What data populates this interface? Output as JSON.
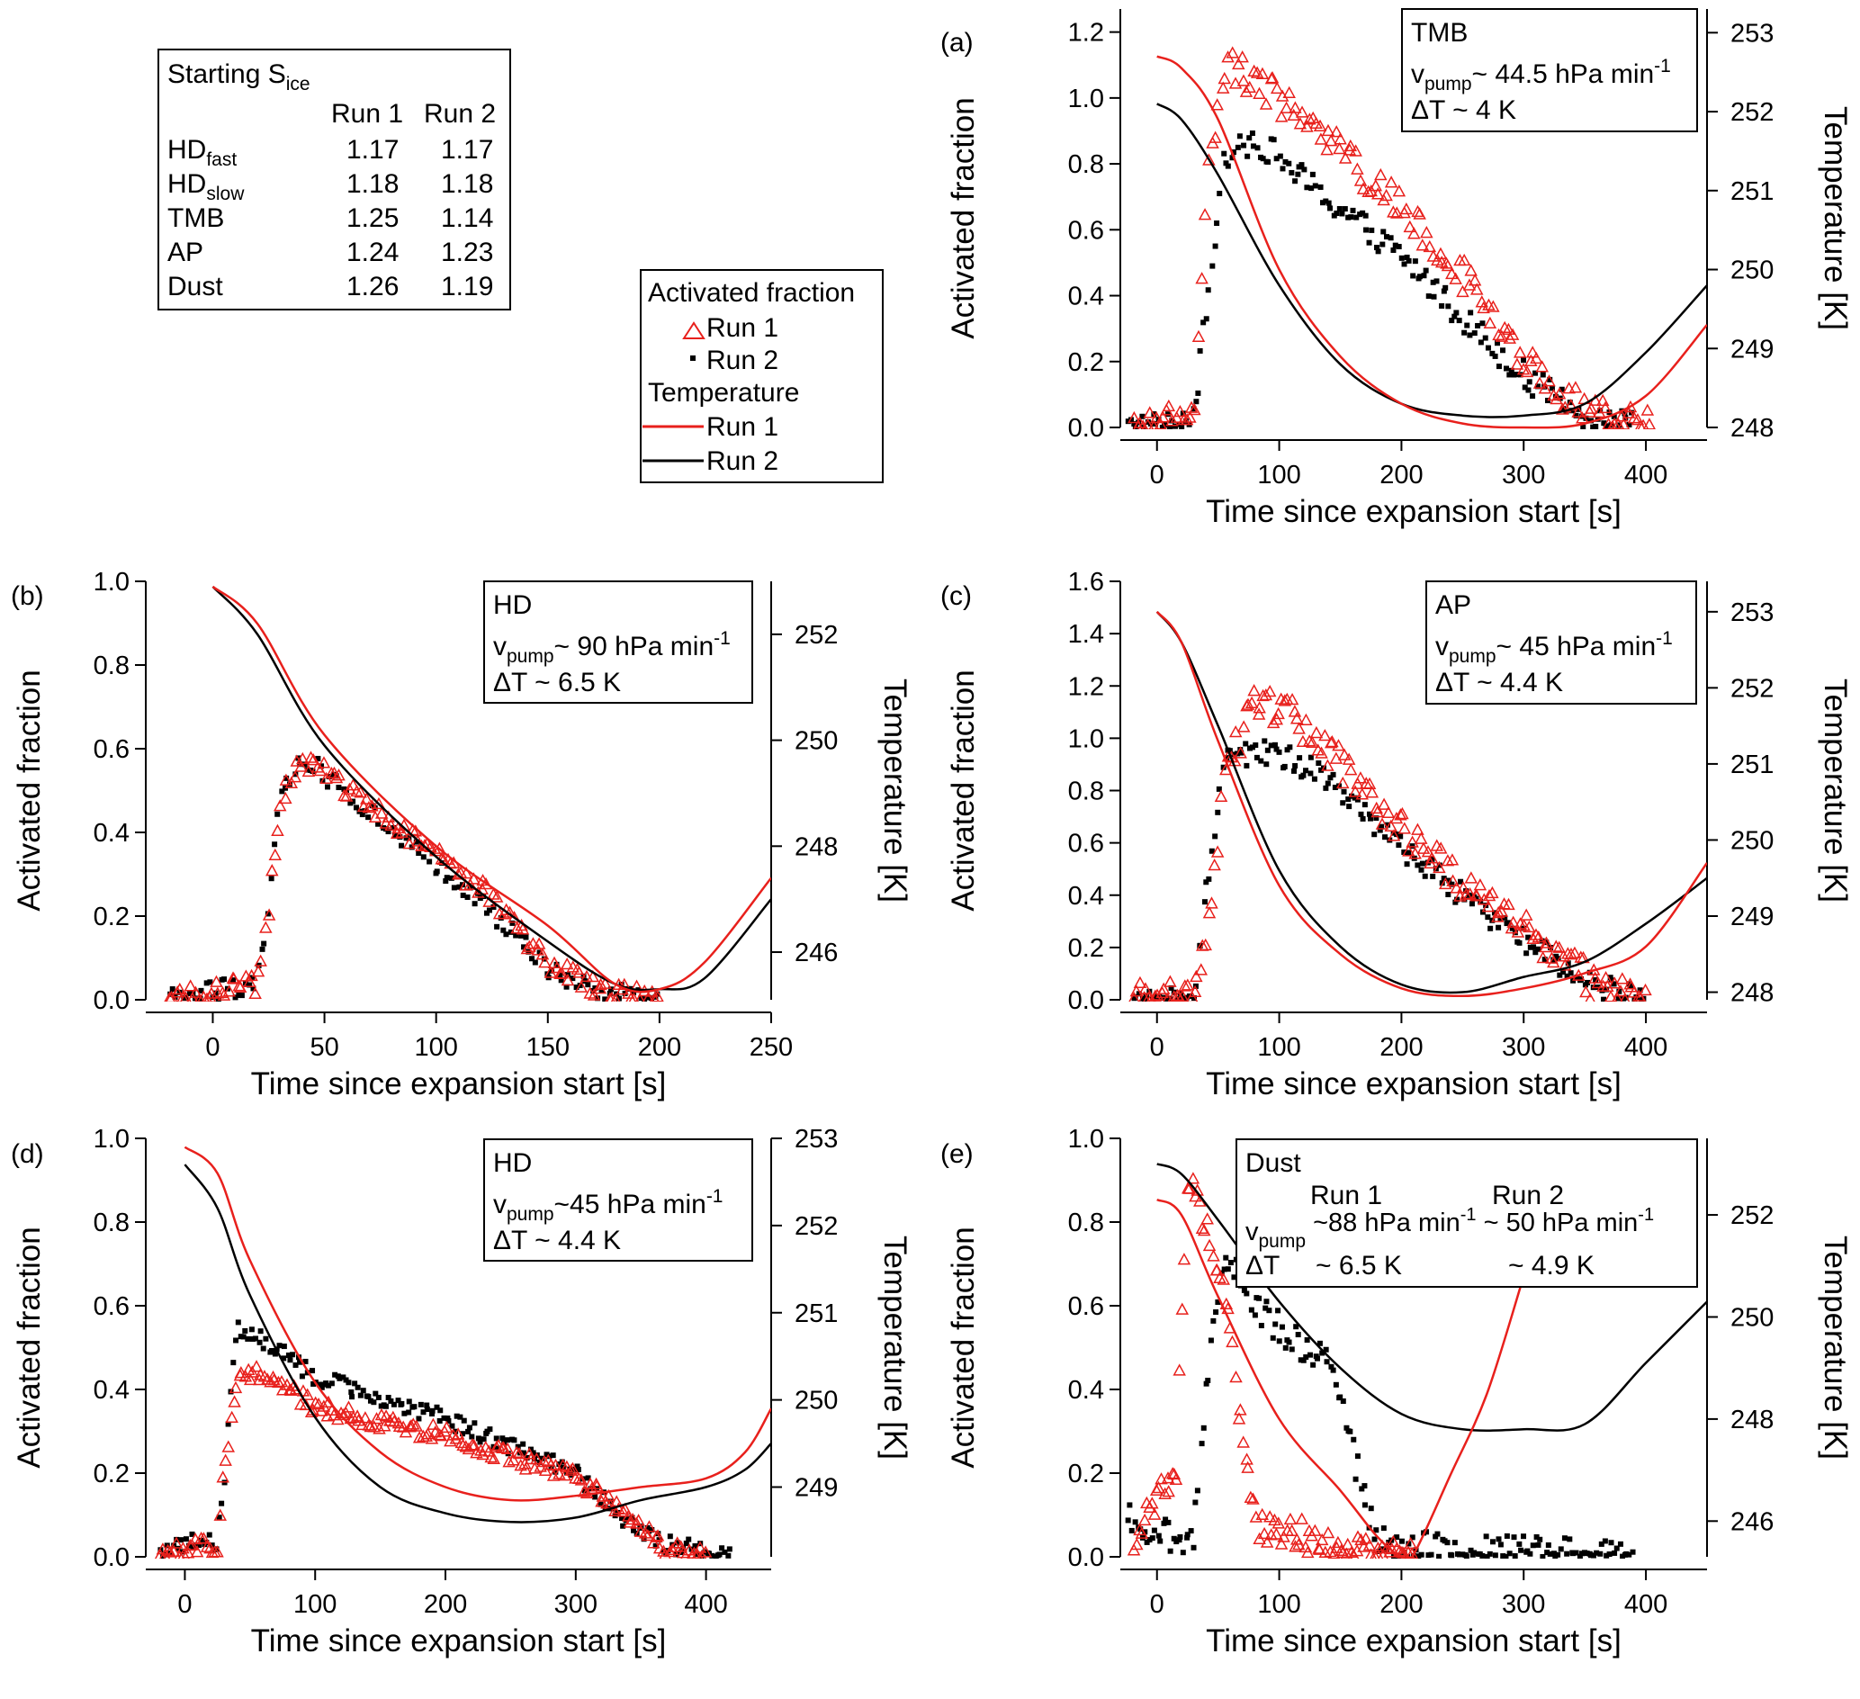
{
  "figure_title": "",
  "colors": {
    "run1": "#e8201c",
    "run2": "#000000",
    "axis": "#000000"
  },
  "sice_table": {
    "title_prefix": "Starting S",
    "title_sub": "ice",
    "col1": "Run 1",
    "col2": "Run 2",
    "rows": [
      {
        "label": "HD",
        "sub": "fast",
        "r1": "1.17",
        "r2": "1.17"
      },
      {
        "label": "HD",
        "sub": "slow",
        "r1": "1.18",
        "r2": "1.18"
      },
      {
        "label": "TMB",
        "sub": "",
        "r1": "1.25",
        "r2": "1.14"
      },
      {
        "label": "AP",
        "sub": "",
        "r1": "1.24",
        "r2": "1.23"
      },
      {
        "label": "Dust",
        "sub": "",
        "r1": "1.26",
        "r2": "1.19"
      }
    ]
  },
  "legend": {
    "af_header": "Activated fraction",
    "af_run1": "Run 1",
    "af_run2": "Run 2",
    "t_header": "Temperature",
    "t_run1": "Run 1",
    "t_run2": "Run 2"
  },
  "chart_data": [
    {
      "id": "a",
      "panel_label": "(a)",
      "type": "scatter",
      "xlabel": "Time since expansion start [s]",
      "ylabel": "Activated fraction",
      "y2label": "Temperature [K]",
      "xlim": [
        -30,
        450
      ],
      "ylim": [
        0,
        1.27
      ],
      "y2lim": [
        248,
        253.3
      ],
      "xticks": [
        0,
        100,
        200,
        300,
        400
      ],
      "yticks": [
        0.0,
        0.2,
        0.4,
        0.6,
        0.8,
        1.0,
        1.2
      ],
      "y2ticks": [
        248,
        249,
        250,
        251,
        252,
        253
      ],
      "info": {
        "line1": "TMB",
        "v_sym": "v",
        "v_sub": "pump",
        "v_text": "~ 44.5 hPa min",
        "v_sup": "-1",
        "line3": "ΔT ~ 4 K"
      },
      "run1_af": {
        "knots": [
          [
            -20,
            0.0
          ],
          [
            0,
            0.01
          ],
          [
            30,
            0.02
          ],
          [
            40,
            0.7
          ],
          [
            55,
            1.1
          ],
          [
            80,
            1.05
          ],
          [
            130,
            0.9
          ],
          [
            200,
            0.68
          ],
          [
            260,
            0.42
          ],
          [
            300,
            0.2
          ],
          [
            340,
            0.08
          ],
          [
            370,
            0.02
          ],
          [
            405,
            0.0
          ]
        ],
        "n": 160,
        "noise": 0.055
      },
      "run2_af": {
        "knots": [
          [
            -25,
            0.05
          ],
          [
            -10,
            0.0
          ],
          [
            30,
            0.01
          ],
          [
            40,
            0.35
          ],
          [
            55,
            0.8
          ],
          [
            80,
            0.88
          ],
          [
            130,
            0.72
          ],
          [
            200,
            0.52
          ],
          [
            260,
            0.3
          ],
          [
            300,
            0.16
          ],
          [
            340,
            0.05
          ],
          [
            390,
            0.0
          ]
        ],
        "n": 180,
        "noise": 0.045
      },
      "run1_temp": [
        [
          0,
          252.7
        ],
        [
          20,
          252.55
        ],
        [
          50,
          251.9
        ],
        [
          100,
          250.0
        ],
        [
          150,
          248.9
        ],
        [
          200,
          248.3
        ],
        [
          250,
          248.05
        ],
        [
          300,
          248.0
        ],
        [
          350,
          248.05
        ],
        [
          400,
          248.4
        ],
        [
          450,
          249.3
        ]
      ],
      "run2_temp": [
        [
          0,
          252.1
        ],
        [
          20,
          251.9
        ],
        [
          50,
          251.2
        ],
        [
          100,
          249.8
        ],
        [
          150,
          248.8
        ],
        [
          200,
          248.3
        ],
        [
          250,
          248.15
        ],
        [
          300,
          248.15
        ],
        [
          350,
          248.3
        ],
        [
          400,
          248.95
        ],
        [
          450,
          249.8
        ]
      ]
    },
    {
      "id": "b",
      "panel_label": "(b)",
      "type": "scatter",
      "xlabel": "Time since expansion start [s]",
      "ylabel": "Activated fraction",
      "y2label": "Temperature [K]",
      "xlim": [
        -30,
        250
      ],
      "ylim": [
        0,
        1.0
      ],
      "y2lim": [
        245.1,
        253.0
      ],
      "xticks": [
        0,
        50,
        100,
        150,
        200,
        250
      ],
      "yticks": [
        0.0,
        0.2,
        0.4,
        0.6,
        0.8,
        1.0
      ],
      "y2ticks": [
        246,
        248,
        250,
        252
      ],
      "info": {
        "line1": "HD",
        "v_sym": "v",
        "v_sub": "pump",
        "v_text": "~ 90 hPa min",
        "v_sup": "-1",
        "line3": "ΔT ~ 6.5 K"
      },
      "run1_af": {
        "knots": [
          [
            -20,
            0.0
          ],
          [
            0,
            0.02
          ],
          [
            20,
            0.04
          ],
          [
            25,
            0.2
          ],
          [
            30,
            0.48
          ],
          [
            40,
            0.57
          ],
          [
            50,
            0.55
          ],
          [
            80,
            0.42
          ],
          [
            120,
            0.27
          ],
          [
            150,
            0.09
          ],
          [
            175,
            0.02
          ],
          [
            200,
            0.0
          ]
        ],
        "n": 150,
        "noise": 0.025
      },
      "run2_af": {
        "knots": [
          [
            -20,
            0.0
          ],
          [
            0,
            0.02
          ],
          [
            20,
            0.04
          ],
          [
            25,
            0.2
          ],
          [
            30,
            0.5
          ],
          [
            40,
            0.58
          ],
          [
            50,
            0.54
          ],
          [
            80,
            0.4
          ],
          [
            120,
            0.24
          ],
          [
            150,
            0.07
          ],
          [
            175,
            0.02
          ],
          [
            200,
            0.0
          ]
        ],
        "n": 150,
        "noise": 0.025
      },
      "run1_temp": [
        [
          0,
          252.9
        ],
        [
          20,
          252.2
        ],
        [
          50,
          250.1
        ],
        [
          100,
          248.0
        ],
        [
          150,
          246.5
        ],
        [
          180,
          245.4
        ],
        [
          200,
          245.3
        ],
        [
          220,
          245.8
        ],
        [
          250,
          247.4
        ]
      ],
      "run2_temp": [
        [
          0,
          252.9
        ],
        [
          20,
          252.0
        ],
        [
          50,
          249.9
        ],
        [
          100,
          247.8
        ],
        [
          150,
          246.2
        ],
        [
          180,
          245.4
        ],
        [
          200,
          245.3
        ],
        [
          220,
          245.5
        ],
        [
          250,
          247.0
        ]
      ]
    },
    {
      "id": "c",
      "panel_label": "(c)",
      "type": "scatter",
      "xlabel": "Time since expansion start [s]",
      "ylabel": "Activated fraction",
      "y2label": "Temperature [K]",
      "xlim": [
        -30,
        450
      ],
      "ylim": [
        0,
        1.6
      ],
      "y2lim": [
        247.9,
        253.4
      ],
      "xticks": [
        0,
        100,
        200,
        300,
        400
      ],
      "yticks": [
        0.0,
        0.2,
        0.4,
        0.6,
        0.8,
        1.0,
        1.2,
        1.4,
        1.6
      ],
      "y2ticks": [
        248,
        249,
        250,
        251,
        252,
        253
      ],
      "info": {
        "line1": "AP",
        "v_sym": "v",
        "v_sub": "pump",
        "v_text": "~ 45 hPa min",
        "v_sup": "-1",
        "line3": "ΔT ~ 4.4 K"
      },
      "run1_af": {
        "knots": [
          [
            -20,
            0.0
          ],
          [
            30,
            0.01
          ],
          [
            40,
            0.2
          ],
          [
            55,
            0.85
          ],
          [
            80,
            1.15
          ],
          [
            110,
            1.1
          ],
          [
            140,
            0.95
          ],
          [
            200,
            0.65
          ],
          [
            260,
            0.4
          ],
          [
            320,
            0.2
          ],
          [
            360,
            0.05
          ],
          [
            400,
            0.0
          ]
        ],
        "n": 170,
        "noise": 0.07
      },
      "run2_af": {
        "knots": [
          [
            -20,
            0.0
          ],
          [
            30,
            0.01
          ],
          [
            40,
            0.4
          ],
          [
            55,
            0.9
          ],
          [
            80,
            0.95
          ],
          [
            110,
            0.92
          ],
          [
            140,
            0.85
          ],
          [
            200,
            0.58
          ],
          [
            260,
            0.36
          ],
          [
            320,
            0.17
          ],
          [
            360,
            0.05
          ],
          [
            400,
            0.0
          ]
        ],
        "n": 190,
        "noise": 0.05
      },
      "run1_temp": [
        [
          0,
          253.0
        ],
        [
          20,
          252.6
        ],
        [
          50,
          251.3
        ],
        [
          100,
          249.4
        ],
        [
          150,
          248.5
        ],
        [
          200,
          248.05
        ],
        [
          250,
          247.95
        ],
        [
          300,
          248.05
        ],
        [
          350,
          248.25
        ],
        [
          400,
          248.6
        ],
        [
          450,
          249.7
        ]
      ],
      "run2_temp": [
        [
          0,
          253.0
        ],
        [
          20,
          252.6
        ],
        [
          50,
          251.5
        ],
        [
          100,
          249.6
        ],
        [
          150,
          248.6
        ],
        [
          200,
          248.1
        ],
        [
          250,
          248.0
        ],
        [
          300,
          248.2
        ],
        [
          350,
          248.4
        ],
        [
          400,
          248.9
        ],
        [
          450,
          249.5
        ]
      ]
    },
    {
      "id": "d",
      "panel_label": "(d)",
      "type": "scatter",
      "xlabel": "Time since expansion start [s]",
      "ylabel": "Activated fraction",
      "y2label": "Temperature [K]",
      "xlim": [
        -30,
        450
      ],
      "ylim": [
        0,
        1.0
      ],
      "y2lim": [
        248.2,
        253.0
      ],
      "xticks": [
        0,
        100,
        200,
        300,
        400
      ],
      "yticks": [
        0.0,
        0.2,
        0.4,
        0.6,
        0.8,
        1.0
      ],
      "y2ticks": [
        249,
        250,
        251,
        252,
        253
      ],
      "info": {
        "line1": "HD",
        "v_sym": "v",
        "v_sub": "pump",
        "v_text": "~45 hPa min",
        "v_sup": "-1",
        "line3": "ΔT ~ 4.4 K"
      },
      "run1_af": {
        "knots": [
          [
            -20,
            0.0
          ],
          [
            0,
            0.02
          ],
          [
            25,
            0.03
          ],
          [
            30,
            0.2
          ],
          [
            40,
            0.42
          ],
          [
            60,
            0.44
          ],
          [
            100,
            0.36
          ],
          [
            200,
            0.29
          ],
          [
            300,
            0.19
          ],
          [
            340,
            0.1
          ],
          [
            370,
            0.02
          ],
          [
            400,
            0.0
          ]
        ],
        "n": 200,
        "noise": 0.02
      },
      "run2_af": {
        "knots": [
          [
            -20,
            0.0
          ],
          [
            0,
            0.03
          ],
          [
            25,
            0.04
          ],
          [
            30,
            0.18
          ],
          [
            40,
            0.55
          ],
          [
            60,
            0.52
          ],
          [
            100,
            0.43
          ],
          [
            200,
            0.33
          ],
          [
            300,
            0.2
          ],
          [
            340,
            0.08
          ],
          [
            370,
            0.03
          ],
          [
            420,
            0.0
          ]
        ],
        "n": 220,
        "noise": 0.022
      },
      "run1_temp": [
        [
          0,
          252.9
        ],
        [
          25,
          252.6
        ],
        [
          50,
          251.6
        ],
        [
          100,
          250.2
        ],
        [
          150,
          249.4
        ],
        [
          200,
          249.0
        ],
        [
          250,
          248.85
        ],
        [
          300,
          248.9
        ],
        [
          350,
          249.0
        ],
        [
          400,
          249.1
        ],
        [
          430,
          249.4
        ],
        [
          450,
          249.9
        ]
      ],
      "run2_temp": [
        [
          0,
          252.7
        ],
        [
          25,
          252.2
        ],
        [
          50,
          251.2
        ],
        [
          100,
          249.8
        ],
        [
          150,
          249.0
        ],
        [
          200,
          248.7
        ],
        [
          250,
          248.6
        ],
        [
          300,
          248.65
        ],
        [
          350,
          248.85
        ],
        [
          400,
          249.0
        ],
        [
          430,
          249.2
        ],
        [
          450,
          249.5
        ]
      ]
    },
    {
      "id": "e",
      "panel_label": "(e)",
      "type": "scatter",
      "xlabel": "Time since expansion start [s]",
      "ylabel": "Activated fraction",
      "y2label": "Temperature [K]",
      "xlim": [
        -30,
        450
      ],
      "ylim": [
        0,
        1.0
      ],
      "y2lim": [
        245.3,
        253.5
      ],
      "xticks": [
        0,
        100,
        200,
        300,
        400
      ],
      "yticks": [
        0.0,
        0.2,
        0.4,
        0.6,
        0.8,
        1.0
      ],
      "y2ticks": [
        246,
        248,
        250,
        252
      ],
      "info": {
        "line1": "Dust",
        "col1": "Run 1",
        "col2": "Run 2",
        "v_sym": "v",
        "v_sub": "pump",
        "v_r1": "~88 hPa min",
        "v_r1_sup": "-1",
        "v_r2": "~ 50 hPa min",
        "v_r2_sup": "-1",
        "dt_label": "ΔT",
        "dt_r1": "~ 6.5 K",
        "dt_r2": "~ 4.9 K"
      },
      "run1_af": {
        "knots": [
          [
            -20,
            0.05
          ],
          [
            0,
            0.15
          ],
          [
            15,
            0.18
          ],
          [
            25,
            0.9
          ],
          [
            40,
            0.8
          ],
          [
            55,
            0.62
          ],
          [
            70,
            0.3
          ],
          [
            80,
            0.08
          ],
          [
            120,
            0.05
          ],
          [
            150,
            0.02
          ],
          [
            180,
            0.0
          ],
          [
            210,
            0.0
          ]
        ],
        "n": 110,
        "noise": 0.04
      },
      "run2_af": {
        "knots": [
          [
            -25,
            0.1
          ],
          [
            0,
            0.05
          ],
          [
            30,
            0.05
          ],
          [
            45,
            0.55
          ],
          [
            60,
            0.72
          ],
          [
            80,
            0.6
          ],
          [
            110,
            0.52
          ],
          [
            140,
            0.48
          ],
          [
            160,
            0.25
          ],
          [
            180,
            0.04
          ],
          [
            220,
            0.02
          ],
          [
            300,
            0.01
          ],
          [
            390,
            0.0
          ]
        ],
        "n": 200,
        "noise": 0.04
      },
      "run1_temp": [
        [
          0,
          252.3
        ],
        [
          20,
          252.0
        ],
        [
          50,
          250.4
        ],
        [
          100,
          248.0
        ],
        [
          150,
          246.6
        ],
        [
          180,
          245.7
        ],
        [
          200,
          245.3
        ],
        [
          210,
          245.35
        ],
        [
          240,
          246.9
        ],
        [
          270,
          248.5
        ],
        [
          300,
          250.8
        ]
      ],
      "run2_temp": [
        [
          0,
          253.0
        ],
        [
          20,
          252.8
        ],
        [
          50,
          251.9
        ],
        [
          100,
          250.3
        ],
        [
          150,
          249.0
        ],
        [
          200,
          248.1
        ],
        [
          250,
          247.8
        ],
        [
          300,
          247.8
        ],
        [
          350,
          247.9
        ],
        [
          400,
          249.1
        ],
        [
          450,
          250.3
        ]
      ]
    }
  ]
}
